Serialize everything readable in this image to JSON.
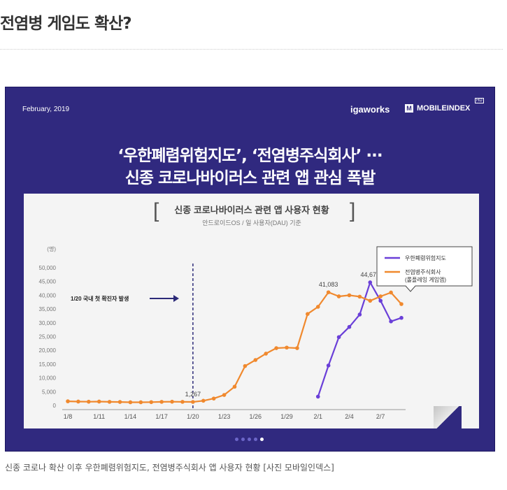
{
  "article": {
    "headline": "전염병 게임도 확산?",
    "caption": "신종 코로나 확산 이후 우한폐렴위험지도, 전염병주식회사 앱 사용자 현황 [사진 모바일인덱스]"
  },
  "infographic": {
    "date": "February, 2019",
    "brand1": "igaworks",
    "brand2_mark": "M",
    "brand2": "MOBILEINDEX",
    "brand2_badge": "HD",
    "title_line1": "‘우한폐렴위험지도’, ‘전염병주식회사’ ···",
    "title_line2": "신종 코로나바이러스 관련 앱 관심 폭발",
    "dots": {
      "count": 5,
      "active": 4
    }
  },
  "chart_data": {
    "type": "line",
    "title": "신종 코로나바이러스 관련 앱 사용자 현황",
    "subtitle": "안드로이드OS / 일 사용자(DAU) 기준",
    "ylabel": "(명)",
    "ylim": [
      0,
      50000
    ],
    "yticks": [
      0,
      5000,
      10000,
      15000,
      20000,
      25000,
      30000,
      35000,
      40000,
      45000,
      50000
    ],
    "ytick_labels": [
      "0",
      "5,000",
      "10,000",
      "15,000",
      "20,000",
      "25,000",
      "30,000",
      "35,000",
      "40,000",
      "45,000",
      "50,000"
    ],
    "xtick_labels": [
      "1/8",
      "1/11",
      "1/14",
      "1/17",
      "1/20",
      "1/23",
      "1/26",
      "1/29",
      "2/1",
      "2/4",
      "2/7"
    ],
    "x": [
      "1/8",
      "1/9",
      "1/10",
      "1/11",
      "1/12",
      "1/13",
      "1/14",
      "1/15",
      "1/16",
      "1/17",
      "1/18",
      "1/19",
      "1/20",
      "1/21",
      "1/22",
      "1/23",
      "1/24",
      "1/25",
      "1/26",
      "1/27",
      "1/28",
      "1/29",
      "1/30",
      "1/31",
      "2/1",
      "2/2",
      "2/3",
      "2/4",
      "2/5",
      "2/6",
      "2/7",
      "2/8",
      "2/9"
    ],
    "series": [
      {
        "name": "우한폐렴위험지도",
        "color": "#6a3fd8",
        "values": [
          null,
          null,
          null,
          null,
          null,
          null,
          null,
          null,
          null,
          null,
          null,
          null,
          null,
          null,
          null,
          null,
          null,
          null,
          null,
          null,
          null,
          null,
          null,
          null,
          3200,
          14500,
          24800,
          28500,
          33000,
          44677,
          38000,
          30500,
          31800
        ]
      },
      {
        "name": "전염병주식회사\n(롤플레잉 게임앱)",
        "color": "#f0892e",
        "values": [
          1500,
          1400,
          1350,
          1400,
          1300,
          1250,
          1150,
          1150,
          1200,
          1300,
          1350,
          1300,
          1267,
          1700,
          2500,
          3800,
          6800,
          14300,
          16500,
          18800,
          20800,
          21000,
          20800,
          33200,
          35800,
          41083,
          39600,
          40000,
          39500,
          38000,
          39600,
          41000,
          36800
        ]
      }
    ],
    "annotations": [
      {
        "x": "1/20",
        "label": "1/20 국내 첫 확진자 발생",
        "type": "vline"
      },
      {
        "x": "1/20",
        "y": 1267,
        "label": "1,267"
      },
      {
        "x": "2/2",
        "y": 41083,
        "label": "41,083"
      },
      {
        "x": "2/6",
        "y": 44677,
        "label": "44,677"
      }
    ],
    "legend": "top-right",
    "grid": false
  }
}
